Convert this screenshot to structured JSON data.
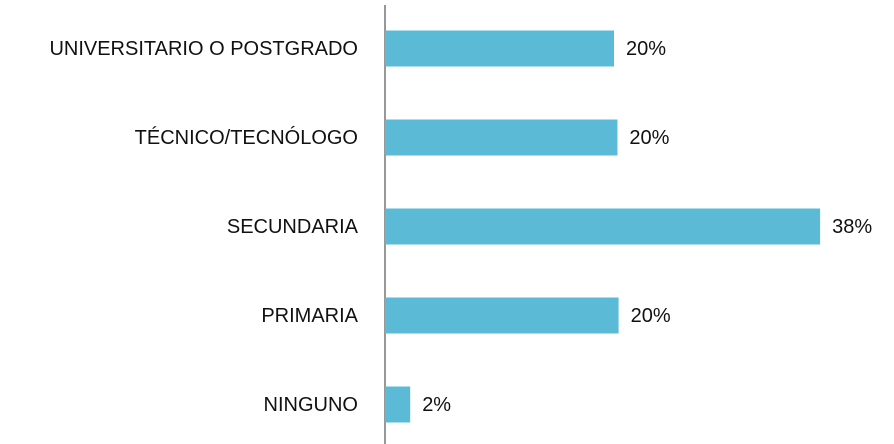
{
  "chart_data": {
    "type": "hbar",
    "categories": [
      "UNIVERSITARIO O POSTGRADO",
      "TÉCNICO/TECNÓLOGO",
      "SECUNDARIA",
      "PRIMARIA",
      "NINGUNO"
    ],
    "values": [
      20,
      20.3,
      38,
      20.4,
      2.2
    ],
    "value_labels": [
      "20%",
      "20%",
      "38%",
      "20%",
      "2%"
    ],
    "color": "#5bbad5",
    "xlim": [
      0,
      40
    ]
  }
}
